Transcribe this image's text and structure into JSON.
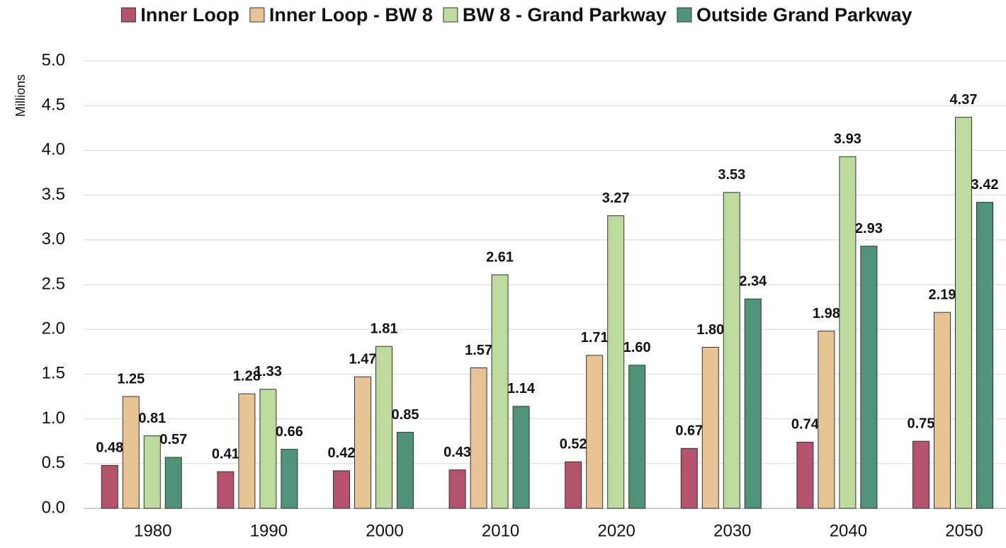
{
  "chart_data": {
    "type": "bar",
    "y_label": "Millions",
    "categories": [
      "1980",
      "1990",
      "2000",
      "2010",
      "2020",
      "2030",
      "2040",
      "2050"
    ],
    "series": [
      {
        "name": "Inner Loop",
        "color": "#b5526e",
        "values": [
          0.48,
          0.41,
          0.42,
          0.43,
          0.52,
          0.67,
          0.74,
          0.75
        ],
        "value_labels": [
          "0.48",
          "0.41",
          "0.42",
          "0.43",
          "0.52",
          "0.67",
          "0.74",
          "0.75"
        ]
      },
      {
        "name": "Inner Loop - BW 8",
        "color": "#e8c495",
        "values": [
          1.25,
          1.28,
          1.47,
          1.57,
          1.71,
          1.8,
          1.98,
          2.19
        ],
        "value_labels": [
          "1.25",
          "1.28",
          "1.47",
          "1.57",
          "1.71",
          "1.80",
          "1.98",
          "2.19"
        ]
      },
      {
        "name": "BW 8 - Grand Parkway",
        "color": "#bcdb9d",
        "values": [
          0.81,
          1.33,
          1.81,
          2.61,
          3.27,
          3.53,
          3.93,
          4.37
        ],
        "value_labels": [
          "0.81",
          "1.33",
          "1.81",
          "2.61",
          "3.27",
          "3.53",
          "3.93",
          "4.37"
        ]
      },
      {
        "name": "Outside Grand Parkway",
        "color": "#4f9479",
        "values": [
          0.57,
          0.66,
          0.85,
          1.14,
          1.6,
          2.34,
          2.93,
          3.42
        ],
        "value_labels": [
          "0.57",
          "0.66",
          "0.85",
          "1.14",
          "1.60",
          "2.34",
          "2.93",
          "3.42"
        ]
      }
    ],
    "ylim": [
      0,
      5
    ],
    "yticks": [
      {
        "value": 0,
        "label": "0.0"
      },
      0.5,
      {
        "value": 1,
        "label": "1.0"
      },
      1.5,
      {
        "value": 2,
        "label": "2.0"
      },
      2.5,
      {
        "value": 3,
        "label": "3.0"
      },
      3.5,
      {
        "value": 4,
        "label": "4.0"
      },
      4.5,
      {
        "value": 5,
        "label": "5.0"
      }
    ],
    "grid": true,
    "legend": "top"
  }
}
